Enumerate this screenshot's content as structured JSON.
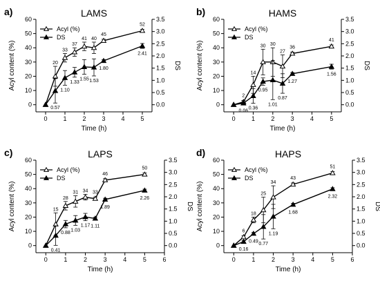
{
  "chart_data": [
    {
      "type": "line",
      "panel_letter": "a)",
      "title": "LAMS",
      "xlabel": "Time (h)",
      "ylabel": "Acyl content (%)",
      "y2label": "DS",
      "xlim": [
        -0.5,
        5.5
      ],
      "xticks": [
        "0",
        "1",
        "2",
        "3",
        "4",
        "5"
      ],
      "ylim": [
        -5,
        60
      ],
      "yticks": [
        "0",
        "10",
        "20",
        "30",
        "40",
        "50",
        "60"
      ],
      "y2lim": [
        -0.2917,
        3.5
      ],
      "y2ticks": [
        "0.0",
        "0.5",
        "1.0",
        "1.5",
        "2.0",
        "2.5",
        "3.0",
        "3.5"
      ],
      "legend_position": "top-left-inside",
      "series": [
        {
          "name": "Acyl (%)",
          "axis": "left",
          "marker": "open-triangle",
          "x": [
            0,
            0.5,
            1,
            1.5,
            2,
            2.5,
            3,
            5
          ],
          "y": [
            0,
            20,
            33,
            37,
            41,
            40,
            45,
            52
          ],
          "err": [
            0,
            7,
            3,
            3,
            3,
            4,
            1,
            1
          ],
          "labels": [
            "",
            "20",
            "33",
            "37",
            "41",
            "40",
            "45",
            "52"
          ]
        },
        {
          "name": "DS",
          "axis": "right",
          "marker": "filled-triangle",
          "x": [
            0,
            0.5,
            1,
            1.5,
            2,
            2.5,
            3,
            5
          ],
          "y": [
            0.0,
            0.57,
            1.1,
            1.33,
            1.55,
            1.53,
            1.8,
            2.41
          ],
          "err": [
            0,
            0.5,
            0.3,
            0.2,
            0.3,
            0.35,
            0.05,
            0.1
          ],
          "labels": [
            "",
            "0.57",
            "1.10",
            "1.33",
            "1.55",
            "1.53",
            "1.80",
            "2.41"
          ]
        }
      ]
    },
    {
      "type": "line",
      "panel_letter": "b)",
      "title": "HAMS",
      "xlabel": "Time (h)",
      "ylabel": "Acyl content (%)",
      "y2label": "DS",
      "xlim": [
        -0.5,
        5.5
      ],
      "xticks": [
        "0",
        "1",
        "2",
        "3",
        "4",
        "5"
      ],
      "ylim": [
        -5,
        60
      ],
      "yticks": [
        "0",
        "10",
        "20",
        "30",
        "40",
        "50",
        "60"
      ],
      "y2lim": [
        -0.2917,
        3.5
      ],
      "y2ticks": [
        "0.0",
        "0.5",
        "1.0",
        "1.5",
        "2.0",
        "2.5",
        "3.0",
        "3.5"
      ],
      "legend_position": "top-left-inside",
      "series": [
        {
          "name": "Acyl (%)",
          "axis": "left",
          "marker": "open-triangle",
          "x": [
            0,
            0.5,
            1,
            1.5,
            2,
            2.5,
            3,
            5
          ],
          "y": [
            0,
            2,
            14,
            30,
            30,
            27,
            36,
            41
          ],
          "err": [
            0,
            1,
            6,
            9,
            10,
            8,
            1,
            1
          ],
          "labels": [
            "",
            "2",
            "14",
            "30",
            "30",
            "27",
            "36",
            "41"
          ]
        },
        {
          "name": "DS",
          "axis": "right",
          "marker": "filled-triangle",
          "x": [
            0,
            0.5,
            1,
            1.5,
            2,
            2.5,
            3,
            5
          ],
          "y": [
            0.0,
            0.06,
            0.36,
            0.95,
            1.01,
            0.87,
            1.27,
            1.56
          ],
          "err": [
            0,
            0.05,
            0.3,
            0.15,
            0.8,
            0.4,
            0.05,
            0.1
          ],
          "labels": [
            "",
            "0.06",
            "0.36",
            "0.95",
            "1.01",
            "0.87",
            "1.27",
            "1.56"
          ]
        }
      ]
    },
    {
      "type": "line",
      "panel_letter": "c)",
      "title": "LAPS",
      "xlabel": "Time (h)",
      "ylabel": "Acyl content (%)",
      "y2label": "DS",
      "xlim": [
        -0.5,
        6
      ],
      "xticks": [
        "0",
        "1",
        "2",
        "3",
        "4",
        "5",
        "6"
      ],
      "ylim": [
        -5,
        60
      ],
      "yticks": [
        "0",
        "10",
        "20",
        "30",
        "40",
        "50",
        "60"
      ],
      "y2lim": [
        -0.2917,
        3.5
      ],
      "y2ticks": [
        "0.0",
        "0.5",
        "1.0",
        "1.5",
        "2.0",
        "2.5",
        "3.0",
        "3.5"
      ],
      "legend_position": "top-left-inside",
      "series": [
        {
          "name": "Acyl (%)",
          "axis": "left",
          "marker": "open-triangle",
          "x": [
            0,
            0.5,
            1,
            1.5,
            2,
            2.5,
            3,
            5
          ],
          "y": [
            0,
            15,
            28,
            31,
            34,
            33,
            46,
            50
          ],
          "err": [
            0,
            8,
            3,
            4,
            2,
            1,
            1,
            1
          ],
          "labels": [
            "",
            "15",
            "28",
            "31",
            "34",
            "33",
            "46",
            "50"
          ]
        },
        {
          "name": "DS",
          "axis": "right",
          "marker": "filled-triangle",
          "x": [
            0,
            0.5,
            1,
            1.5,
            2,
            2.5,
            3,
            5
          ],
          "y": [
            0.0,
            0.41,
            0.88,
            1.03,
            1.17,
            1.11,
            1.89,
            2.26
          ],
          "err": [
            0,
            0.4,
            0.15,
            0.2,
            0.15,
            0.05,
            0.05,
            0.05
          ],
          "labels": [
            "",
            "0.41",
            "0.88",
            "1.03",
            "1.17",
            "1.11",
            "1.89",
            "2.26"
          ]
        }
      ]
    },
    {
      "type": "line",
      "panel_letter": "d)",
      "title": "HAPS",
      "xlabel": "Time (h)",
      "ylabel": "Acyl content (%)",
      "y2label": "DS",
      "xlim": [
        -0.5,
        6
      ],
      "xticks": [
        "0",
        "1",
        "2",
        "3",
        "4",
        "5",
        "6"
      ],
      "ylim": [
        -5,
        60
      ],
      "yticks": [
        "0",
        "10",
        "20",
        "30",
        "40",
        "50",
        "60"
      ],
      "y2lim": [
        -0.2917,
        3.5
      ],
      "y2ticks": [
        "0.0",
        "0.5",
        "1.0",
        "1.5",
        "2.0",
        "2.5",
        "3.0",
        "3.5"
      ],
      "legend_position": "top-left-inside",
      "series": [
        {
          "name": "Acyl (%)",
          "axis": "left",
          "marker": "open-triangle",
          "x": [
            0,
            0.5,
            1,
            1.5,
            2,
            3,
            5
          ],
          "y": [
            0,
            6,
            18,
            25,
            34,
            43,
            51
          ],
          "err": [
            0,
            1,
            2,
            9,
            8,
            1,
            1
          ],
          "labels": [
            "",
            "6",
            "18",
            "25",
            "34",
            "43",
            "51"
          ]
        },
        {
          "name": "DS",
          "axis": "right",
          "marker": "filled-triangle",
          "x": [
            0,
            0.5,
            1,
            1.5,
            2,
            3,
            5
          ],
          "y": [
            0.0,
            0.16,
            0.49,
            0.77,
            1.19,
            1.68,
            2.32
          ],
          "err": [
            0,
            0.05,
            0.05,
            0.5,
            0.5,
            0.05,
            0.05
          ],
          "labels": [
            "",
            "0.16",
            "0.49",
            "0.77",
            "1.19",
            "1.68",
            "2.32"
          ]
        }
      ]
    }
  ]
}
